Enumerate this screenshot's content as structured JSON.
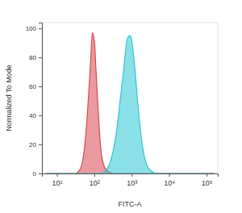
{
  "chart_data": {
    "type": "area",
    "log": "x",
    "x_label": "FITC-A",
    "y_label": "Normalized To Mode",
    "x": [
      5,
      10,
      20,
      32,
      40,
      50,
      56,
      63,
      71,
      79,
      89,
      100,
      112,
      126,
      141,
      158,
      200,
      251,
      316,
      398,
      501,
      631,
      708,
      794,
      891,
      1000,
      1122,
      1259,
      1413,
      1585,
      1995,
      2512,
      3162,
      5012,
      10000,
      31623,
      100000,
      158489
    ],
    "series": [
      {
        "color": "#d9474f",
        "values": [
          0,
          0,
          0,
          0,
          2,
          10,
          20,
          35,
          55,
          75,
          97,
          92,
          70,
          45,
          25,
          12,
          3,
          1,
          0,
          0,
          0,
          0,
          0,
          0,
          0,
          0,
          0,
          0,
          0,
          0,
          0,
          0,
          0,
          0,
          0,
          0,
          0,
          0
        ]
      },
      {
        "color": "#2cc7d4",
        "values": [
          0,
          0,
          0,
          0,
          0,
          0,
          0,
          0,
          0,
          0,
          0,
          0,
          0,
          0,
          0,
          0,
          2,
          6,
          15,
          30,
          52,
          75,
          88,
          94,
          95,
          92,
          82,
          68,
          52,
          38,
          17,
          6,
          2,
          0,
          0,
          0,
          0,
          0
        ]
      }
    ],
    "xlim": [
      4,
      200000
    ],
    "xticks": [
      {
        "value": 10,
        "label": "10¹"
      },
      {
        "value": 100,
        "label": "10²"
      },
      {
        "value": 1000,
        "label": "10³"
      },
      {
        "value": 10000,
        "label": "10⁴"
      },
      {
        "value": 100000,
        "label": "10⁵"
      }
    ],
    "ylim": [
      0,
      104
    ],
    "yticks": [
      0,
      20,
      40,
      60,
      80,
      100
    ]
  }
}
